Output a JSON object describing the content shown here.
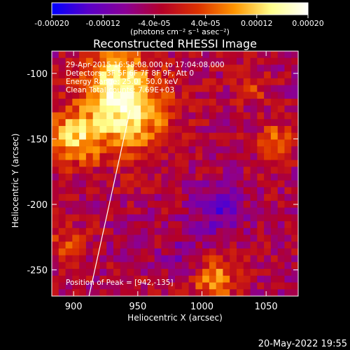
{
  "colorbar": {
    "ticks": [
      "-0.00020",
      "-0.00012",
      "-4.0e-05",
      "4.0e-05",
      "0.00012",
      "0.00020"
    ],
    "tick_values": [
      -0.0002,
      -0.00012,
      -4e-05,
      4e-05,
      0.00012,
      0.0002
    ],
    "range": [
      -0.0002,
      0.0002
    ],
    "units": "(photons cm⁻² s⁻¹ asec⁻²)",
    "colors": [
      "#0000ff",
      "#5a00c8",
      "#8a0096",
      "#b40028",
      "#dc3200",
      "#ff9600",
      "#ffff8c",
      "#ffffff"
    ]
  },
  "chart_data": {
    "type": "heatmap",
    "title": "Reconstructed RHESSI Image",
    "xlabel": "Heliocentric X (arcsec)",
    "ylabel": "Heliocentric Y (arcsec)",
    "xlim": [
      883,
      1075
    ],
    "ylim": [
      -270,
      -83
    ],
    "xticks": [
      900,
      950,
      1000,
      1050
    ],
    "yticks": [
      -100,
      -150,
      -200,
      -250
    ],
    "annotations": [
      "29-Apr-2015 16:58:08.000 to 17:04:08.000",
      "Detectors: 3F 5F 6F 7F 8F 9F, Att 0",
      "Energy Range: 25.0 - 50.0 keV",
      "Clean     Total counts: 7.69E+03"
    ],
    "peak_label": "Position of Peak = [942,-135]",
    "peak": [
      942,
      -135
    ],
    "limb_line": [
      [
        912,
        -270
      ],
      [
        944,
        -128
      ]
    ],
    "hot_regions": [
      {
        "x": 942,
        "y": -130,
        "sigma": 22,
        "amp": 0.00018
      },
      {
        "x": 900,
        "y": -148,
        "sigma": 14,
        "amp": 0.00015
      },
      {
        "x": 932,
        "y": -100,
        "sigma": 16,
        "amp": 0.00012
      },
      {
        "x": 1010,
        "y": -258,
        "sigma": 12,
        "amp": 0.00012
      },
      {
        "x": 1058,
        "y": -150,
        "sigma": 10,
        "amp": 9e-05
      },
      {
        "x": 895,
        "y": -230,
        "sigma": 10,
        "amp": 7e-05
      },
      {
        "x": 1040,
        "y": -110,
        "sigma": 9,
        "amp": 6e-05
      }
    ],
    "cold_regions": [
      {
        "x": 1012,
        "y": -205,
        "sigma": 14,
        "amp": -8e-05
      },
      {
        "x": 985,
        "y": -240,
        "sigma": 12,
        "amp": -5e-05
      }
    ]
  },
  "footer": {
    "timestamp": "20-May-2022 19:55"
  }
}
